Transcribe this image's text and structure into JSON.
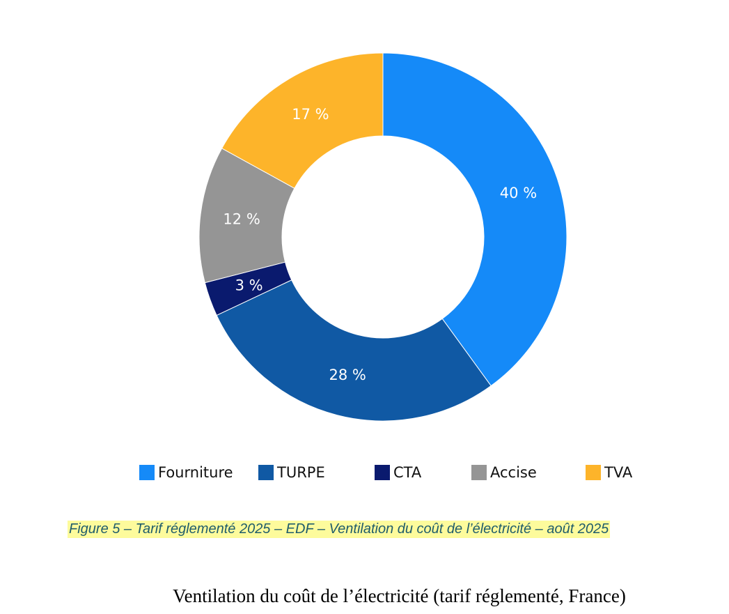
{
  "chart_data": {
    "type": "pie",
    "donut": true,
    "categories": [
      "Fourniture",
      "TURPE",
      "CTA",
      "Accise",
      "TVA"
    ],
    "values": [
      40,
      28,
      3,
      12,
      17
    ],
    "labels": [
      "40 %",
      "28 %",
      "3 %",
      "12 %",
      "17 %"
    ],
    "colors": [
      "#158af8",
      "#1059a4",
      "#0a1a6e",
      "#959595",
      "#fdb42a"
    ],
    "legend_position": "bottom"
  },
  "caption": "Figure 5 – Tarif réglementé 2025 – EDF – Ventilation du coût de l’électricité – août 2025",
  "title": "Ventilation du coût de l’électricité (tarif réglementé, France)"
}
